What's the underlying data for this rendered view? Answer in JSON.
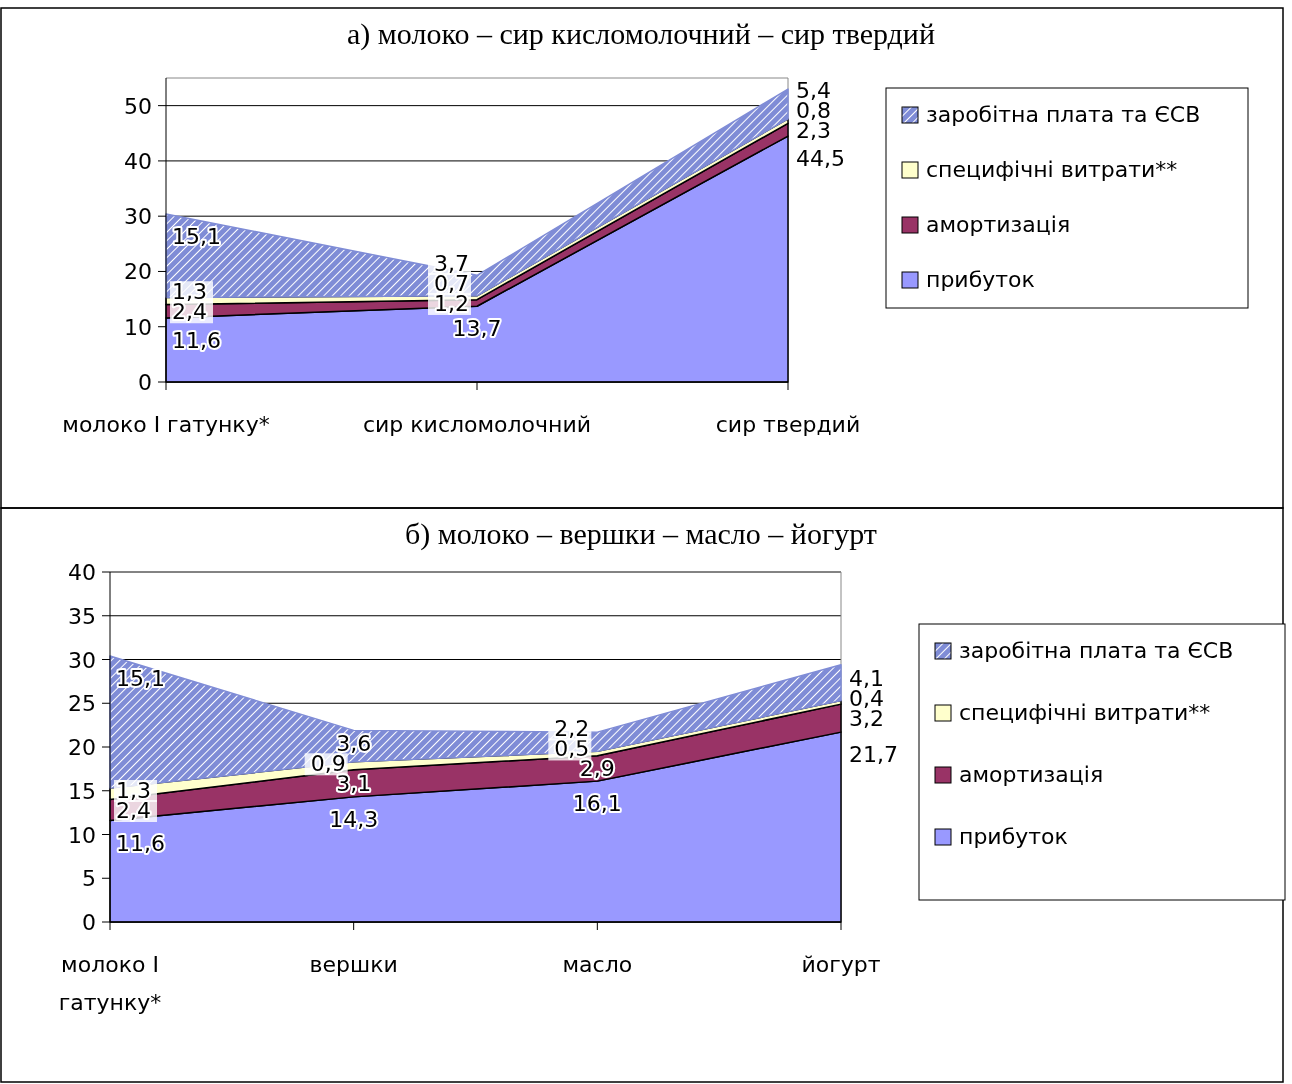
{
  "chart_data": [
    {
      "type": "area",
      "stacked": true,
      "title": "а) молоко – сир кисломолочний – сир твердий",
      "categories": [
        "молоко І гатунку*",
        "сир кисломолочний",
        "сир твердий"
      ],
      "ylim": [
        0,
        55
      ],
      "yticks": [
        0,
        10,
        20,
        30,
        40,
        50
      ],
      "grid": "y",
      "legend": "right",
      "series": [
        {
          "name": "прибуток",
          "color": "#9999ff",
          "values": [
            11.6,
            13.7,
            44.5
          ],
          "value_labels": [
            "11,6",
            "13,7",
            "44,5"
          ]
        },
        {
          "name": "амортизація",
          "color": "#993366",
          "values": [
            2.4,
            1.2,
            2.3
          ],
          "value_labels": [
            "2,4",
            "1,2",
            "2,3"
          ]
        },
        {
          "name": "специфічні витрати**",
          "color": "#ffffcc",
          "values": [
            1.3,
            0.7,
            0.8
          ],
          "value_labels": [
            "1,3",
            "0,7",
            "0,8"
          ]
        },
        {
          "name": "заробітна плата та ЄСВ",
          "color": "#7f8cd6",
          "values": [
            15.1,
            3.7,
            5.4
          ],
          "value_labels": [
            "15,1",
            "3,7",
            "5,4"
          ]
        }
      ]
    },
    {
      "type": "area",
      "stacked": true,
      "title": "б) молоко – вершки – масло – йогурт",
      "categories": [
        "молоко І гатунку*",
        "вершки",
        "масло",
        "йогурт"
      ],
      "ylim": [
        0,
        40
      ],
      "yticks": [
        0,
        5,
        10,
        15,
        20,
        25,
        30,
        35,
        40
      ],
      "grid": "y",
      "legend": "right",
      "series": [
        {
          "name": "прибуток",
          "color": "#9999ff",
          "values": [
            11.6,
            14.3,
            16.1,
            21.7
          ],
          "value_labels": [
            "11,6",
            "14,3",
            "16,1",
            "21,7"
          ]
        },
        {
          "name": "амортизація",
          "color": "#993366",
          "values": [
            2.4,
            3.1,
            2.9,
            3.2
          ],
          "value_labels": [
            "2,4",
            "3,1",
            "2,9",
            "3,2"
          ]
        },
        {
          "name": "специфічні витрати**",
          "color": "#ffffcc",
          "values": [
            1.3,
            0.9,
            0.5,
            0.4
          ],
          "value_labels": [
            "1,3",
            "0,9",
            "0,5",
            "0,4"
          ]
        },
        {
          "name": "заробітна плата та ЄСВ",
          "color": "#7f8cd6",
          "values": [
            15.1,
            3.6,
            2.2,
            4.1
          ],
          "value_labels": [
            "15,1",
            "3,6",
            "2,2",
            "4,1"
          ]
        }
      ]
    }
  ]
}
